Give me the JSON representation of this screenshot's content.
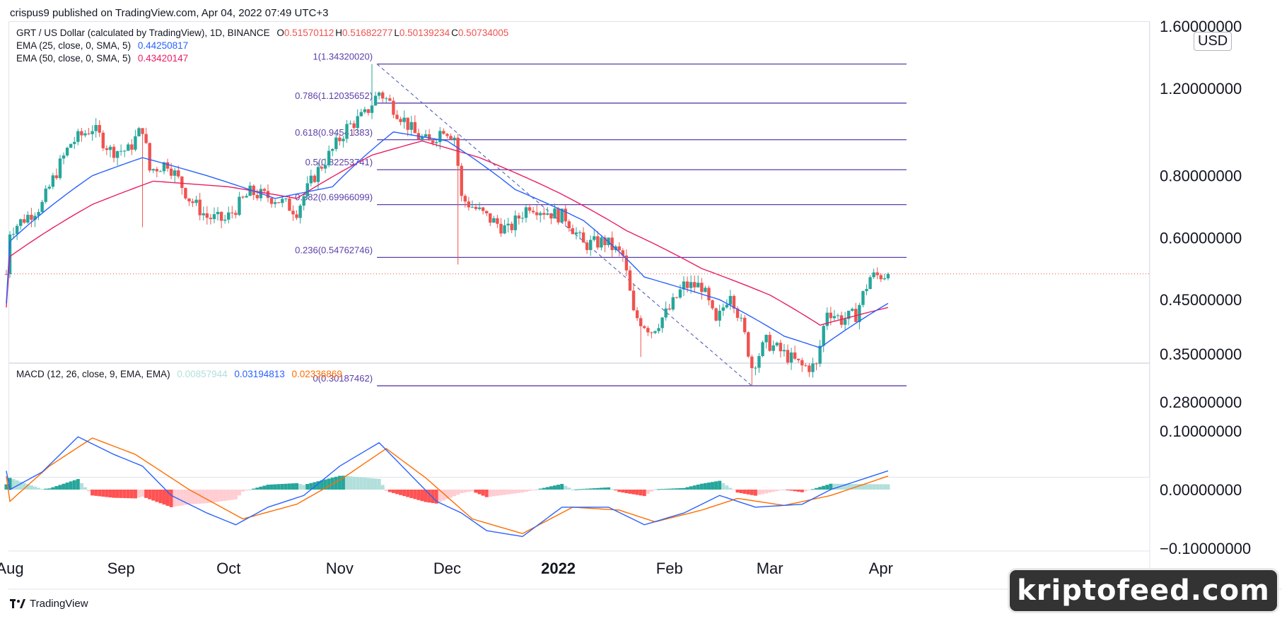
{
  "header": {
    "published": "crispus9 published on TradingView.com, Apr 04, 2022 07:49 UTC+3"
  },
  "legend": {
    "symbol": "GRT / US Dollar (calculated by TradingView), 1D, BINANCE",
    "ohlc": [
      {
        "label": "O",
        "value": "0.51570112"
      },
      {
        "label": "H",
        "value": "0.51682277"
      },
      {
        "label": "L",
        "value": "0.50139234"
      },
      {
        "label": "C",
        "value": "0.50734005"
      }
    ],
    "ema25": {
      "label": "EMA (25, close, 0, SMA, 5)",
      "value": "0.44250817"
    },
    "ema50": {
      "label": "EMA (50, close, 0, SMA, 5)",
      "value": "0.43420147"
    },
    "macd": {
      "label": "MACD (12, 26, close, 9, EMA, EMA)",
      "hist": "0.00857944",
      "macd": "0.03194813",
      "signal": "0.02336869"
    }
  },
  "footer": {
    "brand": "TradingView",
    "watermark": "kriptofeed.com"
  },
  "colors": {
    "up": "#26a69a",
    "down": "#ef5350",
    "ema25": "#2962ff",
    "ema50": "#e91e63",
    "fib": "#5b3ea8",
    "macd": "#2962ff",
    "signal": "#ff6d00",
    "hist_up_strong": "#26a69a",
    "hist_up_weak": "#b2dfdb",
    "hist_down_strong": "#ff5252",
    "hist_down_weak": "#ffcdd2",
    "price_line": "#ef5350",
    "text": "#131722"
  },
  "chart_data": {
    "type": "candlestick",
    "price_axis": {
      "currency": "USD",
      "scale": "log",
      "ticks": [
        1.6,
        1.2,
        0.8,
        0.6,
        0.45,
        0.35,
        0.28
      ],
      "tick_labels": [
        "1.60000000",
        "1.20000000",
        "0.80000000",
        "0.60000000",
        "0.45000000",
        "0.35000000",
        "0.28000000"
      ]
    },
    "macd_axis": {
      "ticks": [
        0.1,
        0.0,
        -0.1
      ],
      "tick_labels": [
        "0.10000000",
        "0.00000000",
        "−0.10000000"
      ]
    },
    "x_axis": {
      "start": "2021-08-01",
      "end": "2022-04-03",
      "ticks": [
        {
          "date": "2021-08-01",
          "label": "Aug",
          "bold": false
        },
        {
          "date": "2021-09-01",
          "label": "Sep",
          "bold": false
        },
        {
          "date": "2021-10-01",
          "label": "Oct",
          "bold": false
        },
        {
          "date": "2021-11-01",
          "label": "Nov",
          "bold": false
        },
        {
          "date": "2021-12-01",
          "label": "Dec",
          "bold": false
        },
        {
          "date": "2022-01-01",
          "label": "2022",
          "bold": true
        },
        {
          "date": "2022-02-01",
          "label": "Feb",
          "bold": false
        },
        {
          "date": "2022-03-01",
          "label": "Mar",
          "bold": false
        },
        {
          "date": "2022-04-01",
          "label": "Apr",
          "bold": false
        }
      ]
    },
    "close_anchors": [
      [
        "2021-08-01",
        0.62
      ],
      [
        "2021-08-10",
        0.7
      ],
      [
        "2021-08-18",
        0.93
      ],
      [
        "2021-08-24",
        1.0
      ],
      [
        "2021-08-29",
        0.9
      ],
      [
        "2021-09-03",
        0.9
      ],
      [
        "2021-09-07",
        1.0
      ],
      [
        "2021-09-09",
        0.82
      ],
      [
        "2021-09-14",
        0.85
      ],
      [
        "2021-09-20",
        0.72
      ],
      [
        "2021-09-25",
        0.66
      ],
      [
        "2021-09-30",
        0.65
      ],
      [
        "2021-10-07",
        0.74
      ],
      [
        "2021-10-14",
        0.72
      ],
      [
        "2021-10-20",
        0.68
      ],
      [
        "2021-10-25",
        0.8
      ],
      [
        "2021-10-30",
        0.9
      ],
      [
        "2021-11-03",
        1.0
      ],
      [
        "2021-11-08",
        1.06
      ],
      [
        "2021-11-12",
        1.18
      ],
      [
        "2021-11-16",
        1.1
      ],
      [
        "2021-11-22",
        0.97
      ],
      [
        "2021-11-26",
        0.93
      ],
      [
        "2021-11-30",
        1.0
      ],
      [
        "2021-12-03",
        0.96
      ],
      [
        "2021-12-05",
        0.72
      ],
      [
        "2021-12-12",
        0.66
      ],
      [
        "2021-12-18",
        0.62
      ],
      [
        "2021-12-24",
        0.7
      ],
      [
        "2021-12-28",
        0.68
      ],
      [
        "2022-01-03",
        0.66
      ],
      [
        "2022-01-08",
        0.58
      ],
      [
        "2022-01-14",
        0.59
      ],
      [
        "2022-01-19",
        0.55
      ],
      [
        "2022-01-22",
        0.42
      ],
      [
        "2022-01-27",
        0.39
      ],
      [
        "2022-02-01",
        0.43
      ],
      [
        "2022-02-05",
        0.48
      ],
      [
        "2022-02-10",
        0.48
      ],
      [
        "2022-02-14",
        0.4
      ],
      [
        "2022-02-18",
        0.47
      ],
      [
        "2022-02-22",
        0.38
      ],
      [
        "2022-02-24",
        0.33
      ],
      [
        "2022-02-28",
        0.37
      ],
      [
        "2022-03-05",
        0.35
      ],
      [
        "2022-03-10",
        0.33
      ],
      [
        "2022-03-14",
        0.33
      ],
      [
        "2022-03-17",
        0.43
      ],
      [
        "2022-03-21",
        0.41
      ],
      [
        "2022-03-25",
        0.42
      ],
      [
        "2022-03-29",
        0.5
      ],
      [
        "2022-04-03",
        0.507
      ]
    ],
    "ema25_anchors": [
      [
        "2021-08-01",
        0.59
      ],
      [
        "2021-08-24",
        0.8
      ],
      [
        "2021-09-07",
        0.87
      ],
      [
        "2021-09-25",
        0.8
      ],
      [
        "2021-10-14",
        0.72
      ],
      [
        "2021-10-30",
        0.76
      ],
      [
        "2021-11-16",
        0.98
      ],
      [
        "2021-12-01",
        0.94
      ],
      [
        "2021-12-20",
        0.75
      ],
      [
        "2022-01-08",
        0.65
      ],
      [
        "2022-01-25",
        0.5
      ],
      [
        "2022-02-15",
        0.45
      ],
      [
        "2022-03-05",
        0.38
      ],
      [
        "2022-03-15",
        0.36
      ],
      [
        "2022-04-03",
        0.4425
      ]
    ],
    "ema50_anchors": [
      [
        "2021-08-01",
        0.55
      ],
      [
        "2021-08-24",
        0.7
      ],
      [
        "2021-09-10",
        0.78
      ],
      [
        "2021-10-01",
        0.76
      ],
      [
        "2021-10-20",
        0.72
      ],
      [
        "2021-11-10",
        0.88
      ],
      [
        "2021-11-24",
        0.94
      ],
      [
        "2021-12-10",
        0.87
      ],
      [
        "2022-01-01",
        0.74
      ],
      [
        "2022-01-20",
        0.62
      ],
      [
        "2022-02-10",
        0.52
      ],
      [
        "2022-03-01",
        0.46
      ],
      [
        "2022-03-15",
        0.4
      ],
      [
        "2022-04-03",
        0.4342
      ]
    ],
    "macd_anchors": [
      [
        "2021-08-01",
        0.0
      ],
      [
        "2021-08-10",
        0.03
      ],
      [
        "2021-08-20",
        0.09
      ],
      [
        "2021-08-30",
        0.06
      ],
      [
        "2021-09-07",
        0.04
      ],
      [
        "2021-09-15",
        -0.01
      ],
      [
        "2021-09-25",
        -0.04
      ],
      [
        "2021-10-03",
        -0.06
      ],
      [
        "2021-10-12",
        -0.03
      ],
      [
        "2021-10-22",
        -0.01
      ],
      [
        "2021-11-01",
        0.04
      ],
      [
        "2021-11-12",
        0.08
      ],
      [
        "2021-11-20",
        0.03
      ],
      [
        "2021-11-28",
        -0.02
      ],
      [
        "2021-12-05",
        -0.04
      ],
      [
        "2021-12-12",
        -0.07
      ],
      [
        "2021-12-22",
        -0.08
      ],
      [
        "2022-01-02",
        -0.03
      ],
      [
        "2022-01-15",
        -0.03
      ],
      [
        "2022-01-25",
        -0.06
      ],
      [
        "2022-02-05",
        -0.04
      ],
      [
        "2022-02-15",
        -0.01
      ],
      [
        "2022-02-25",
        -0.03
      ],
      [
        "2022-03-10",
        -0.025
      ],
      [
        "2022-03-18",
        0.0
      ],
      [
        "2022-03-28",
        0.02
      ],
      [
        "2022-04-03",
        0.032
      ]
    ],
    "signal_anchors": [
      [
        "2021-08-01",
        -0.02
      ],
      [
        "2021-08-12",
        0.04
      ],
      [
        "2021-08-24",
        0.088
      ],
      [
        "2021-09-05",
        0.06
      ],
      [
        "2021-09-20",
        0.0
      ],
      [
        "2021-10-05",
        -0.05
      ],
      [
        "2021-10-20",
        -0.025
      ],
      [
        "2021-11-02",
        0.02
      ],
      [
        "2021-11-14",
        0.07
      ],
      [
        "2021-11-25",
        0.02
      ],
      [
        "2021-12-08",
        -0.05
      ],
      [
        "2021-12-22",
        -0.075
      ],
      [
        "2022-01-05",
        -0.03
      ],
      [
        "2022-01-18",
        -0.035
      ],
      [
        "2022-01-28",
        -0.055
      ],
      [
        "2022-02-10",
        -0.035
      ],
      [
        "2022-02-20",
        -0.015
      ],
      [
        "2022-03-05",
        -0.027
      ],
      [
        "2022-03-18",
        -0.01
      ],
      [
        "2022-04-03",
        0.023
      ]
    ],
    "fibonacci": {
      "start_date": "2021-11-11",
      "end_date": "2022-02-24",
      "levels": [
        {
          "label": "1(1.34320020)",
          "price": 1.3432002
        },
        {
          "label": "0.786(1.12035652)",
          "price": 1.12035652
        },
        {
          "label": "0.618(0.94541383)",
          "price": 0.94541383
        },
        {
          "label": "0.5(0.82253741)",
          "price": 0.82253741
        },
        {
          "label": "0.382(0.69966099)",
          "price": 0.69966099
        },
        {
          "label": "0.236(0.54762746)",
          "price": 0.54762746
        },
        {
          "label": "0(0.30187462)",
          "price": 0.30187462
        }
      ]
    },
    "last_price": 0.50734005
  }
}
